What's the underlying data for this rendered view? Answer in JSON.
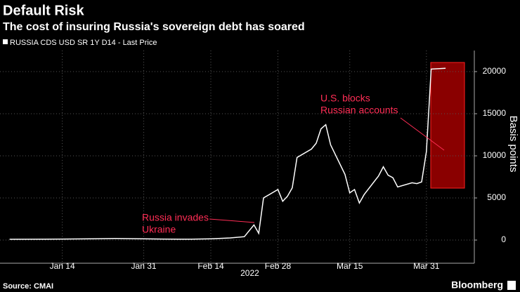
{
  "chart_data": {
    "type": "line",
    "title": "Default Risk",
    "subtitle": "The cost of insuring Russia's sovereign debt has soared",
    "y_label": "Basis points",
    "x_year_label": "2022",
    "source": "Source: CMAI",
    "brand": "Bloomberg",
    "grid": true,
    "xlim": [
      "2022-01-01",
      "2022-04-10"
    ],
    "xticks": [
      {
        "value": "2022-01-14",
        "label": "Jan 14"
      },
      {
        "value": "2022-01-31",
        "label": "Jan 31"
      },
      {
        "value": "2022-02-14",
        "label": "Feb 14"
      },
      {
        "value": "2022-02-28",
        "label": "Feb 28"
      },
      {
        "value": "2022-03-15",
        "label": "Mar 15"
      },
      {
        "value": "2022-03-31",
        "label": "Mar 31"
      }
    ],
    "ylim": [
      -2750,
      22500
    ],
    "yticks": [
      0,
      5000,
      10000,
      15000,
      20000
    ],
    "x": [
      "2022-01-03",
      "2022-01-10",
      "2022-01-14",
      "2022-01-20",
      "2022-01-25",
      "2022-01-31",
      "2022-02-04",
      "2022-02-10",
      "2022-02-14",
      "2022-02-18",
      "2022-02-21",
      "2022-02-23",
      "2022-02-24",
      "2022-02-25",
      "2022-02-28",
      "2022-03-01",
      "2022-03-02",
      "2022-03-03",
      "2022-03-04",
      "2022-03-07",
      "2022-03-08",
      "2022-03-09",
      "2022-03-10",
      "2022-03-11",
      "2022-03-14",
      "2022-03-15",
      "2022-03-16",
      "2022-03-17",
      "2022-03-18",
      "2022-03-21",
      "2022-03-22",
      "2022-03-23",
      "2022-03-24",
      "2022-03-25",
      "2022-03-28",
      "2022-03-29",
      "2022-03-30",
      "2022-03-31",
      "2022-04-01",
      "2022-04-04"
    ],
    "series": [
      {
        "name": "RUSSIA CDS USD SR 1Y D14 - Last Price",
        "color": "#ffffff",
        "values": [
          90,
          100,
          120,
          150,
          180,
          150,
          120,
          100,
          150,
          250,
          400,
          1800,
          800,
          5000,
          6000,
          4600,
          5200,
          6200,
          9800,
          10800,
          11500,
          13200,
          13700,
          11300,
          7800,
          5600,
          6000,
          4400,
          5400,
          7600,
          8700,
          7700,
          7400,
          6300,
          6800,
          6700,
          6900,
          10500,
          20300,
          20400
        ]
      }
    ],
    "annotations": [
      {
        "text": [
          "Russia invades",
          "Ukraine"
        ],
        "color": "#ff2d55"
      },
      {
        "text": [
          "U.S. blocks",
          "Russian accounts"
        ],
        "color": "#ff2d55"
      }
    ]
  }
}
